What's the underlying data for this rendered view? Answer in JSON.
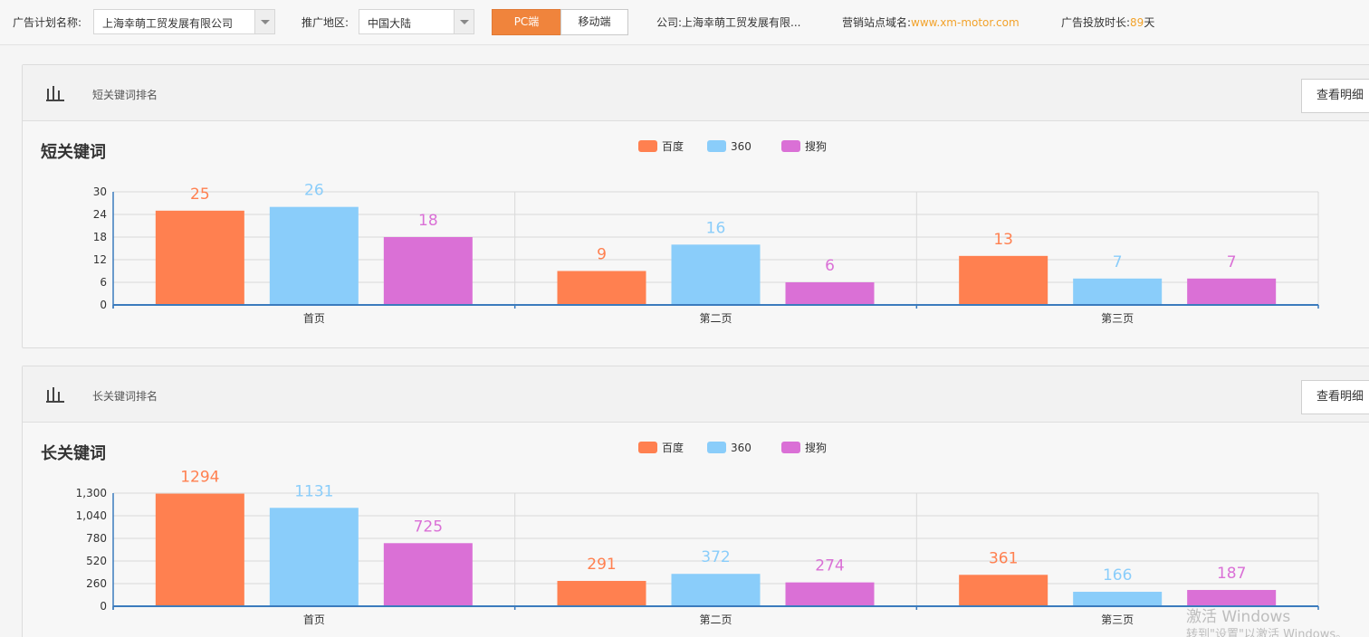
{
  "topbar": {
    "plan_label": "广告计划名称:",
    "plan_value": "上海幸萌工贸发展有限公司",
    "region_label": "推广地区:",
    "region_value": "中国大陆",
    "pc_label": "PC端",
    "mobile_label": "移动端",
    "company_label": "公司:",
    "company_value": "上海幸萌工贸发展有限...",
    "domain_label": "营销站点域名:",
    "domain_value": "www.xm-motor.com",
    "duration_label": "广告投放时长:",
    "duration_value": "89",
    "duration_unit": "天"
  },
  "panels": [
    {
      "header_title": "短关键词排名",
      "detail_label": "查看明细"
    },
    {
      "header_title": "长关键词排名",
      "detail_label": "查看明细"
    }
  ],
  "colors": {
    "baidu": "#ff8050",
    "s360": "#8acdfa",
    "sougou": "#da70d6",
    "accent": "#f0843c"
  },
  "chart_data": [
    {
      "type": "bar",
      "title": "短关键词",
      "categories": [
        "首页",
        "第二页",
        "第三页"
      ],
      "series": [
        {
          "name": "百度",
          "color": "#ff8050",
          "values": [
            25,
            9,
            13
          ]
        },
        {
          "name": "360",
          "color": "#8acdfa",
          "values": [
            26,
            16,
            7
          ]
        },
        {
          "name": "搜狗",
          "color": "#da70d6",
          "values": [
            18,
            6,
            7
          ]
        }
      ],
      "yticks": [
        0,
        6,
        12,
        18,
        24,
        30
      ],
      "ytick_labels": [
        "0",
        "6",
        "12",
        "18",
        "24",
        "30"
      ],
      "ylim": [
        0,
        30
      ],
      "legend": "top-center",
      "grid": true
    },
    {
      "type": "bar",
      "title": "长关键词",
      "categories": [
        "首页",
        "第二页",
        "第三页"
      ],
      "series": [
        {
          "name": "百度",
          "color": "#ff8050",
          "values": [
            1294,
            291,
            361
          ]
        },
        {
          "name": "360",
          "color": "#8acdfa",
          "values": [
            1131,
            372,
            166
          ]
        },
        {
          "name": "搜狗",
          "color": "#da70d6",
          "values": [
            725,
            274,
            187
          ]
        }
      ],
      "yticks": [
        0,
        260,
        520,
        780,
        1040,
        1300
      ],
      "ytick_labels": [
        "0",
        "260",
        "520",
        "780",
        "1,040",
        "1,300"
      ],
      "ylim": [
        0,
        1300
      ],
      "legend": "top-center",
      "grid": true
    }
  ],
  "watermark": {
    "line1": "激活 Windows",
    "line2": "转到\"设置\"以激活 Windows。"
  }
}
